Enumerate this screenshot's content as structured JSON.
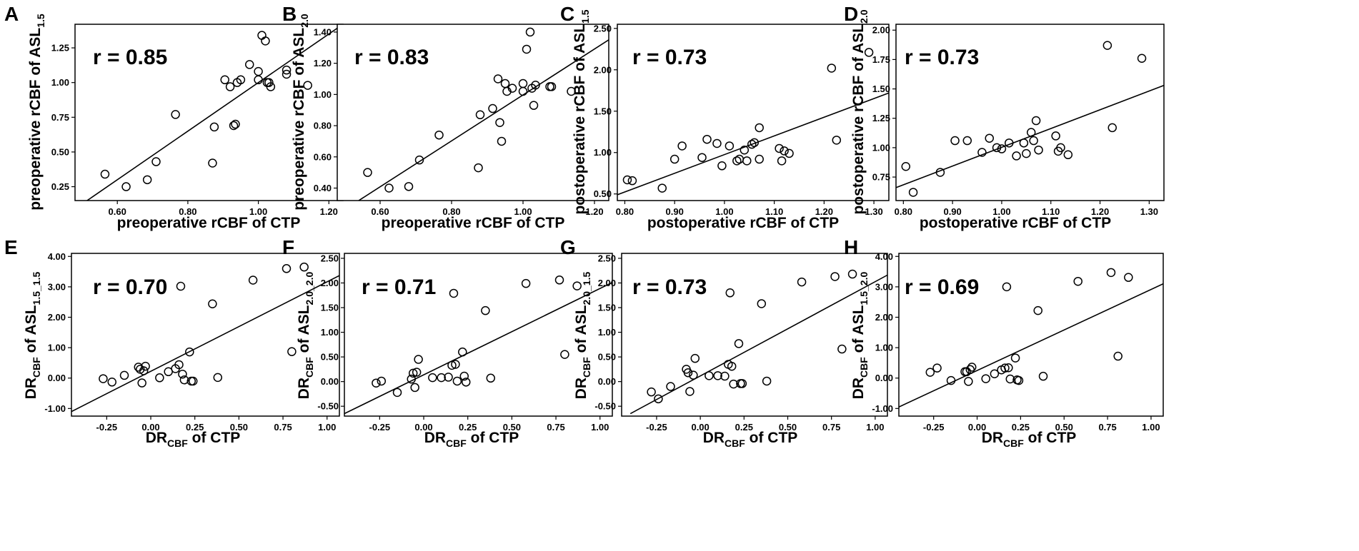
{
  "figure": {
    "panels": [
      {
        "letter": "A",
        "r_text": "r = 0.85",
        "x_label": "preoperative rCBF of CTP",
        "y_label_main": "preoperative rCBF of ASL",
        "y_label_sub": "1.5",
        "y_label_mid": "",
        "y_label_sub2": "",
        "x_label_main": "",
        "x_label_sub": "",
        "x_label_tail": ""
      },
      {
        "letter": "B",
        "r_text": "r = 0.83",
        "x_label": "preoperative rCBF of CTP",
        "y_label_main": "preoperative rCBF of ASL",
        "y_label_sub": "2.0",
        "y_label_mid": "",
        "y_label_sub2": "",
        "x_label_main": "",
        "x_label_sub": "",
        "x_label_tail": ""
      },
      {
        "letter": "C",
        "r_text": "r = 0.73",
        "x_label": "postoperative rCBF of CTP",
        "y_label_main": "postoperative rCBF of ASL",
        "y_label_sub": "1.5",
        "y_label_mid": "",
        "y_label_sub2": "",
        "x_label_main": "",
        "x_label_sub": "",
        "x_label_tail": ""
      },
      {
        "letter": "D",
        "r_text": "r = 0.73",
        "x_label": "postoperative rCBF of CTP",
        "y_label_main": "postoperative rCBF of ASL",
        "y_label_sub": "2.0",
        "y_label_mid": "",
        "y_label_sub2": "",
        "x_label_main": "",
        "x_label_sub": "",
        "x_label_tail": ""
      },
      {
        "letter": "E",
        "r_text": "r = 0.70",
        "x_label": "",
        "y_label_main": "DR",
        "y_label_sub": "CBF",
        "y_label_mid": " of ASL",
        "y_label_sub2": "1.5_1.5",
        "x_label_main": "DR",
        "x_label_sub": "CBF",
        "x_label_tail": " of CTP"
      },
      {
        "letter": "F",
        "r_text": "r = 0.71",
        "x_label": "",
        "y_label_main": "DR",
        "y_label_sub": "CBF",
        "y_label_mid": " of ASL",
        "y_label_sub2": "2.0_2.0",
        "x_label_main": "DR",
        "x_label_sub": "CBF",
        "x_label_tail": " of CTP"
      },
      {
        "letter": "G",
        "r_text": "r = 0.73",
        "x_label": "",
        "y_label_main": "DR",
        "y_label_sub": "CBF",
        "y_label_mid": " of ASL",
        "y_label_sub2": "2.0_1.5",
        "x_label_main": "DR",
        "x_label_sub": "CBF",
        "x_label_tail": " of CTP"
      },
      {
        "letter": "H",
        "r_text": "r = 0.69",
        "x_label": "",
        "y_label_main": "DR",
        "y_label_sub": "CBF",
        "y_label_mid": " of ASL",
        "y_label_sub2": "1.5_2.0",
        "x_label_main": "DR",
        "x_label_sub": "CBF",
        "x_label_tail": " of CTP"
      }
    ]
  },
  "chart_data": [
    {
      "panel": "A",
      "type": "scatter",
      "title": "",
      "xlabel": "preoperative rCBF of CTP",
      "ylabel": "preoperative rCBF of ASL1.5",
      "annotation": "r = 0.85",
      "xlim": [
        0.48,
        1.24
      ],
      "ylim": [
        0.15,
        1.42
      ],
      "xticks": [
        0.6,
        0.8,
        1.0,
        1.2
      ],
      "xtick_labels": [
        "0.60",
        "0.80",
        "1.00",
        "1.20"
      ],
      "yticks": [
        0.25,
        0.5,
        0.75,
        1.0,
        1.25
      ],
      "ytick_labels": [
        "0.25",
        "0.50",
        "0.75",
        "1.00",
        "1.25"
      ],
      "fit_line": [
        [
          0.48,
          0.09
        ],
        [
          1.24,
          1.42
        ]
      ],
      "x": [
        0.565,
        0.625,
        0.685,
        0.71,
        0.765,
        0.87,
        0.875,
        0.905,
        0.92,
        0.93,
        0.935,
        0.94,
        0.95,
        0.975,
        1.0,
        1.0,
        1.01,
        1.02,
        1.025,
        1.03,
        1.035,
        1.08,
        1.08,
        1.14
      ],
      "y": [
        0.34,
        0.25,
        0.3,
        0.43,
        0.77,
        0.42,
        0.68,
        1.02,
        0.97,
        0.69,
        0.7,
        1.0,
        1.02,
        1.13,
        1.02,
        1.08,
        1.34,
        1.3,
        1.0,
        1.0,
        0.97,
        1.06,
        1.09,
        0.98
      ]
    },
    {
      "panel": "B",
      "type": "scatter",
      "title": "",
      "xlabel": "preoperative rCBF of CTP",
      "ylabel": "preoperative rCBF of ASL2.0",
      "annotation": "r = 0.83",
      "xlim": [
        0.48,
        1.24
      ],
      "ylim": [
        0.32,
        1.45
      ],
      "xticks": [
        0.6,
        0.8,
        1.0,
        1.2
      ],
      "xtick_labels": [
        "0.60",
        "0.80",
        "1.00",
        "1.20"
      ],
      "yticks": [
        0.4,
        0.6,
        0.8,
        1.0,
        1.2,
        1.4
      ],
      "ytick_labels": [
        "0.40",
        "0.60",
        "0.80",
        "1.00",
        "1.20",
        "1.40"
      ],
      "fit_line": [
        [
          0.54,
          0.32
        ],
        [
          1.24,
          1.35
        ]
      ],
      "x": [
        0.565,
        0.625,
        0.68,
        0.71,
        0.765,
        0.875,
        0.88,
        0.915,
        0.93,
        0.935,
        0.94,
        0.95,
        0.955,
        0.97,
        1.0,
        1.0,
        1.01,
        1.02,
        1.025,
        1.03,
        1.035,
        1.075,
        1.08,
        1.135
      ],
      "y": [
        0.5,
        0.4,
        0.41,
        0.58,
        0.74,
        0.53,
        0.87,
        0.91,
        1.1,
        0.82,
        0.7,
        1.07,
        1.02,
        1.04,
        1.02,
        1.07,
        1.29,
        1.4,
        1.04,
        0.93,
        1.06,
        1.05,
        1.05,
        1.02
      ]
    },
    {
      "panel": "C",
      "type": "scatter",
      "title": "",
      "xlabel": "postoperative rCBF of CTP",
      "ylabel": "postoperative rCBF of ASL1.5",
      "annotation": "r = 0.73",
      "xlim": [
        0.785,
        1.33
      ],
      "ylim": [
        0.42,
        2.55
      ],
      "xticks": [
        0.8,
        0.9,
        1.0,
        1.1,
        1.2,
        1.3
      ],
      "xtick_labels": [
        "0.80",
        "0.90",
        "1.00",
        "1.10",
        "1.20",
        "1.30"
      ],
      "yticks": [
        0.5,
        1.0,
        1.5,
        2.0,
        2.5
      ],
      "ytick_labels": [
        "0.50",
        "1.00",
        "1.50",
        "2.00",
        "2.50"
      ],
      "fit_line": [
        [
          0.785,
          0.49
        ],
        [
          1.33,
          1.72
        ]
      ],
      "x": [
        0.805,
        0.815,
        0.875,
        0.9,
        0.915,
        0.955,
        0.965,
        0.985,
        0.995,
        1.01,
        1.025,
        1.03,
        1.04,
        1.045,
        1.055,
        1.06,
        1.07,
        1.07,
        1.11,
        1.115,
        1.12,
        1.13,
        1.215,
        1.225,
        1.29
      ],
      "y": [
        0.67,
        0.66,
        0.57,
        0.92,
        1.08,
        0.94,
        1.16,
        1.11,
        0.84,
        1.08,
        0.9,
        0.92,
        1.03,
        0.9,
        1.1,
        1.12,
        1.3,
        0.92,
        1.05,
        0.9,
        1.02,
        0.99,
        2.02,
        1.15,
        2.21
      ]
    },
    {
      "panel": "D",
      "type": "scatter",
      "title": "",
      "xlabel": "postoperative rCBF of CTP",
      "ylabel": "postoperative rCBF of ASL2.0",
      "annotation": "r = 0.73",
      "xlim": [
        0.785,
        1.33
      ],
      "ylim": [
        0.55,
        2.05
      ],
      "xticks": [
        0.8,
        0.9,
        1.0,
        1.1,
        1.2,
        1.3
      ],
      "xtick_labels": [
        "0.80",
        "0.90",
        "1.00",
        "1.10",
        "1.20",
        "1.30"
      ],
      "yticks": [
        0.75,
        1.0,
        1.25,
        1.5,
        1.75,
        2.0
      ],
      "ytick_labels": [
        "0.75",
        "1.00",
        "1.25",
        "1.50",
        "1.75",
        "2.00"
      ],
      "fit_line": [
        [
          0.785,
          0.66
        ],
        [
          1.33,
          1.53
        ]
      ],
      "x": [
        0.805,
        0.82,
        0.875,
        0.905,
        0.93,
        0.96,
        0.975,
        0.99,
        1.0,
        1.015,
        1.03,
        1.045,
        1.05,
        1.06,
        1.065,
        1.07,
        1.075,
        1.11,
        1.115,
        1.12,
        1.135,
        1.215,
        1.225,
        1.285
      ],
      "y": [
        0.84,
        0.62,
        0.79,
        1.06,
        1.06,
        0.96,
        1.08,
        1.0,
        0.99,
        1.04,
        0.93,
        1.04,
        0.95,
        1.13,
        1.06,
        1.23,
        0.98,
        1.1,
        0.97,
        1.0,
        0.94,
        1.87,
        1.17,
        1.76
      ]
    },
    {
      "panel": "E",
      "type": "scatter",
      "title": "",
      "xlabel": "DRCBF of CTP",
      "ylabel": "DRCBF of ASL1.5_1.5",
      "annotation": "r = 0.70",
      "xlim": [
        -0.45,
        1.07
      ],
      "ylim": [
        -1.25,
        4.1
      ],
      "xticks": [
        -0.25,
        0.0,
        0.25,
        0.5,
        0.75,
        1.0
      ],
      "xtick_labels": [
        "-0.25",
        "0.00",
        "0.25",
        "0.50",
        "0.75",
        "1.00"
      ],
      "yticks": [
        -1.0,
        0.0,
        1.0,
        2.0,
        3.0,
        4.0
      ],
      "ytick_labels": [
        "-1.00",
        "0.00",
        "1.00",
        "2.00",
        "3.00",
        "4.00"
      ],
      "fit_line": [
        [
          -0.45,
          -1.1
        ],
        [
          1.07,
          3.37
        ]
      ],
      "x": [
        -0.27,
        -0.22,
        -0.15,
        -0.07,
        -0.06,
        -0.05,
        -0.04,
        -0.03,
        0.05,
        0.1,
        0.14,
        0.16,
        0.17,
        0.18,
        0.19,
        0.22,
        0.23,
        0.24,
        0.35,
        0.38,
        0.58,
        0.77,
        0.8,
        0.87
      ],
      "y": [
        -0.02,
        -0.13,
        0.09,
        0.36,
        0.29,
        -0.16,
        0.24,
        0.39,
        0.01,
        0.21,
        0.31,
        0.44,
        3.02,
        0.13,
        -0.06,
        0.86,
        -0.1,
        -0.1,
        2.44,
        0.02,
        3.22,
        3.6,
        0.87,
        3.65
      ]
    },
    {
      "panel": "F",
      "type": "scatter",
      "title": "",
      "xlabel": "DRCBF of CTP",
      "ylabel": "DRCBF of ASL2.0_2.0",
      "annotation": "r = 0.71",
      "xlim": [
        -0.45,
        1.07
      ],
      "ylim": [
        -0.7,
        2.6
      ],
      "xticks": [
        -0.25,
        0.0,
        0.25,
        0.5,
        0.75,
        1.0
      ],
      "xtick_labels": [
        "-0.25",
        "0.00",
        "0.25",
        "0.50",
        "0.75",
        "1.00"
      ],
      "yticks": [
        -0.5,
        0.0,
        0.5,
        1.0,
        1.5,
        2.0,
        2.5
      ],
      "ytick_labels": [
        "-0.50",
        "0.00",
        "0.50",
        "1.00",
        "1.50",
        "2.00",
        "2.50"
      ],
      "fit_line": [
        [
          -0.45,
          -0.65
        ],
        [
          1.07,
          2.01
        ]
      ],
      "x": [
        -0.27,
        -0.24,
        -0.15,
        -0.07,
        -0.06,
        -0.05,
        -0.04,
        -0.03,
        0.05,
        0.1,
        0.14,
        0.16,
        0.17,
        0.18,
        0.19,
        0.22,
        0.23,
        0.24,
        0.35,
        0.38,
        0.58,
        0.77,
        0.8,
        0.87
      ],
      "y": [
        -0.03,
        0.01,
        -0.22,
        0.05,
        0.17,
        -0.12,
        0.19,
        0.45,
        0.08,
        0.08,
        0.09,
        0.33,
        1.79,
        0.35,
        0.01,
        0.6,
        0.11,
        -0.01,
        1.44,
        0.07,
        1.99,
        2.06,
        0.55,
        1.94
      ]
    },
    {
      "panel": "G",
      "type": "scatter",
      "title": "",
      "xlabel": "DRCBF of CTP",
      "ylabel": "DRCBF of ASL2.0_1.5",
      "annotation": "r = 0.73",
      "xlim": [
        -0.45,
        1.07
      ],
      "ylim": [
        -0.7,
        2.6
      ],
      "xticks": [
        -0.25,
        0.0,
        0.25,
        0.5,
        0.75,
        1.0
      ],
      "xtick_labels": [
        "-0.25",
        "0.00",
        "0.25",
        "0.50",
        "0.75",
        "1.00"
      ],
      "yticks": [
        -0.5,
        0.0,
        0.5,
        1.0,
        1.5,
        2.0,
        2.5
      ],
      "ytick_labels": [
        "-0.50",
        "0.00",
        "0.50",
        "1.00",
        "1.50",
        "2.00",
        "2.50"
      ],
      "fit_line": [
        [
          -0.4,
          -0.65
        ],
        [
          1.07,
          2.16
        ]
      ],
      "x": [
        -0.28,
        -0.24,
        -0.17,
        -0.08,
        -0.07,
        -0.06,
        -0.04,
        -0.03,
        0.05,
        0.1,
        0.14,
        0.16,
        0.17,
        0.18,
        0.19,
        0.22,
        0.23,
        0.24,
        0.35,
        0.38,
        0.58,
        0.77,
        0.81,
        0.87
      ],
      "y": [
        -0.21,
        -0.35,
        -0.1,
        0.25,
        0.18,
        -0.2,
        0.13,
        0.47,
        0.12,
        0.12,
        0.11,
        0.35,
        1.8,
        0.31,
        -0.05,
        0.77,
        -0.04,
        -0.04,
        1.58,
        0.01,
        2.02,
        2.13,
        0.66,
        2.18
      ]
    },
    {
      "panel": "H",
      "type": "scatter",
      "title": "",
      "xlabel": "DRCBF of CTP",
      "ylabel": "DRCBF of ASL1.5_2.0",
      "annotation": "r = 0.69",
      "xlim": [
        -0.45,
        1.07
      ],
      "ylim": [
        -1.25,
        4.1
      ],
      "xticks": [
        -0.25,
        0.0,
        0.25,
        0.5,
        0.75,
        1.0
      ],
      "xtick_labels": [
        "-0.25",
        "0.00",
        "0.25",
        "0.50",
        "0.75",
        "1.00"
      ],
      "yticks": [
        -1.0,
        0.0,
        1.0,
        2.0,
        3.0,
        4.0
      ],
      "ytick_labels": [
        "-1.00",
        "0.00",
        "1.00",
        "2.00",
        "3.00",
        "4.00"
      ],
      "fit_line": [
        [
          -0.45,
          -0.95
        ],
        [
          1.07,
          3.1
        ]
      ],
      "x": [
        -0.27,
        -0.23,
        -0.15,
        -0.07,
        -0.06,
        -0.05,
        -0.04,
        -0.03,
        0.05,
        0.1,
        0.14,
        0.16,
        0.17,
        0.18,
        0.19,
        0.22,
        0.23,
        0.24,
        0.35,
        0.38,
        0.58,
        0.77,
        0.81,
        0.87
      ],
      "y": [
        0.19,
        0.33,
        -0.08,
        0.21,
        0.21,
        -0.11,
        0.28,
        0.36,
        -0.02,
        0.14,
        0.27,
        0.33,
        3.0,
        0.34,
        -0.03,
        0.66,
        -0.06,
        -0.08,
        2.22,
        0.06,
        3.18,
        3.47,
        0.72,
        3.31
      ]
    }
  ]
}
